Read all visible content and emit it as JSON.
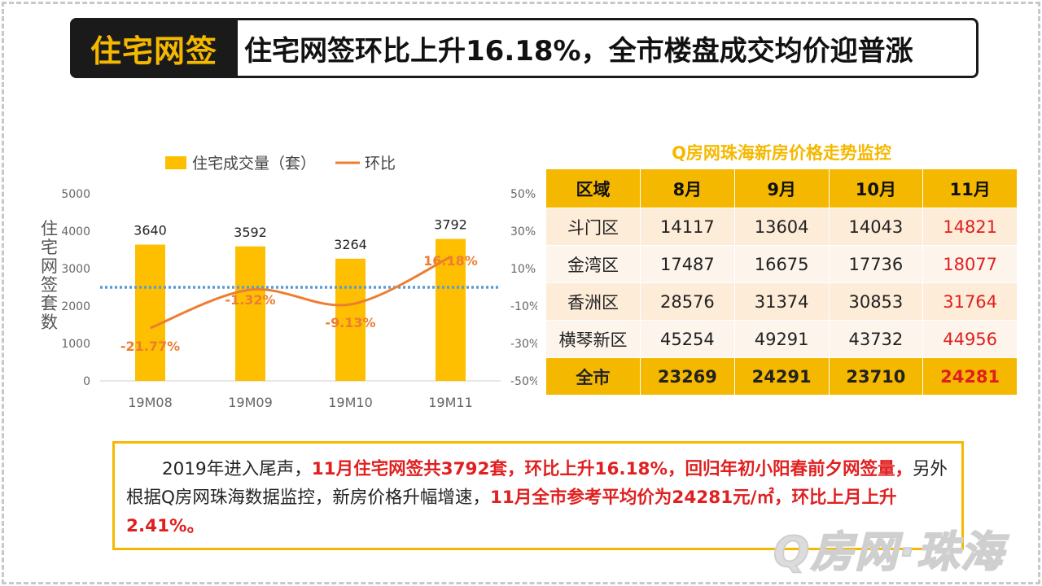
{
  "header": {
    "tag": "住宅网签",
    "title": "住宅网签环比上升16.18%，全市楼盘成交均价迎普涨"
  },
  "chart_data": {
    "type": "bar+line",
    "categories": [
      "19M08",
      "19M09",
      "19M10",
      "19M11"
    ],
    "series": [
      {
        "name": "住宅成交量（套）",
        "type": "bar",
        "axis": "left",
        "values": [
          3640,
          3592,
          3264,
          3792
        ],
        "labels": [
          "3640",
          "3592",
          "3264",
          "3792"
        ],
        "color": "#fdbf00"
      },
      {
        "name": "环比",
        "type": "line",
        "axis": "right",
        "values": [
          -21.77,
          -1.32,
          -9.13,
          16.18
        ],
        "labels": [
          "-21.77%",
          "-1.32%",
          "-9.13%",
          "16.18%"
        ],
        "color": "#ed7d31"
      }
    ],
    "reference_line": {
      "value": 2500,
      "style": "dotted",
      "color": "#5b9bd5"
    },
    "ylabel": "住宅网签套数",
    "ylim": [
      0,
      5000
    ],
    "y_ticks": [
      "0",
      "1000",
      "2000",
      "3000",
      "4000",
      "5000"
    ],
    "y2lim": [
      -50,
      50
    ],
    "y2_ticks": [
      "-50%",
      "-30%",
      "-10%",
      "10%",
      "30%",
      "50%"
    ],
    "legend_position": "top",
    "grid": false
  },
  "price_table": {
    "title": "Q房网珠海新房价格走势监控",
    "headers": [
      "区域",
      "8月",
      "9月",
      "10月",
      "11月"
    ],
    "rows": [
      [
        "斗门区",
        "14117",
        "13604",
        "14043",
        "14821"
      ],
      [
        "金湾区",
        "17487",
        "16675",
        "17736",
        "18077"
      ],
      [
        "香洲区",
        "28576",
        "31374",
        "30853",
        "31764"
      ],
      [
        "横琴新区",
        "45254",
        "49291",
        "43732",
        "44956"
      ]
    ],
    "total": [
      "全市",
      "23269",
      "24291",
      "23710",
      "24281"
    ],
    "highlight_color": "#e02020"
  },
  "summary": {
    "p1": "2019年进入尾声，",
    "p2": "11月住宅网签共3792套，环比上升16.18%，回归年初小阳春前夕网签量，",
    "p3": "另外根据Q房网珠海数据监控，新房价格升幅增速，",
    "p4": "11月全市参考平均价为24281元/㎡，环比上月上升2.41%。"
  },
  "watermark": "Q房网·珠海"
}
